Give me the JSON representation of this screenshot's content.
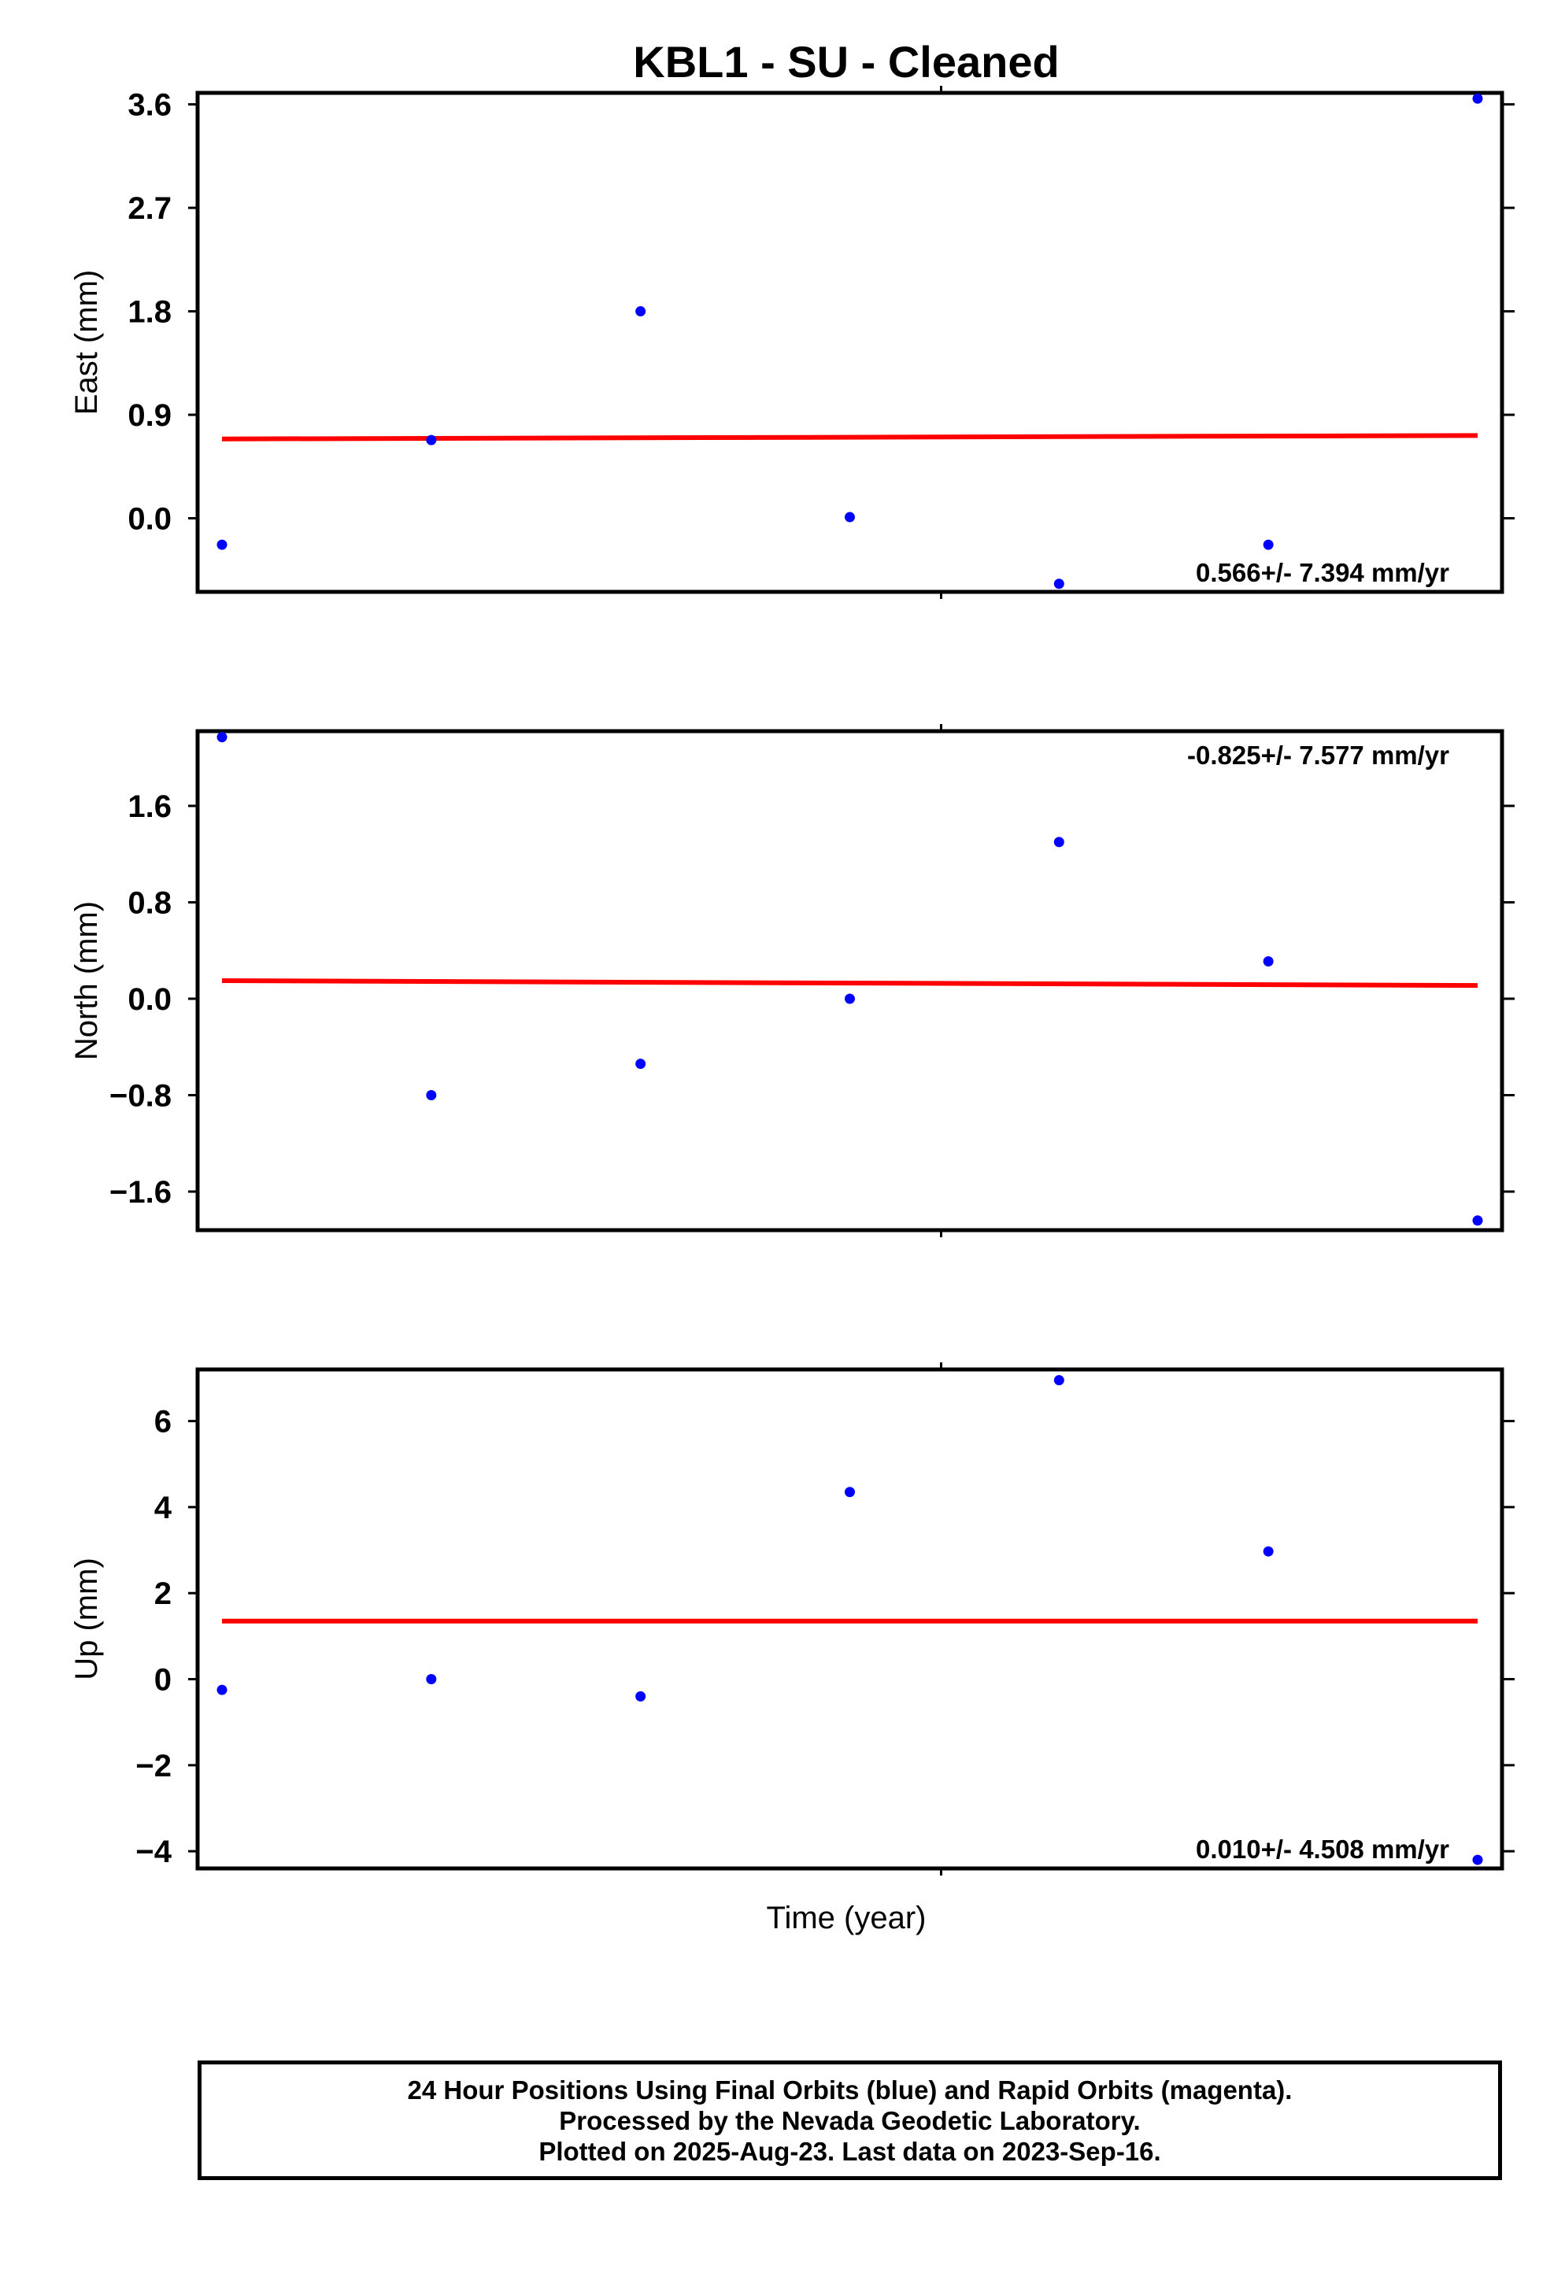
{
  "title": "KBL1  - SU - Cleaned",
  "xlabel": "Time (year)",
  "colors": {
    "points": "#0000ff",
    "trend": "#ff0000",
    "frame": "#000000"
  },
  "chart_data": [
    {
      "type": "scatter",
      "ylabel": "East (mm)",
      "yticks": [
        "3.6",
        "2.7",
        "1.8",
        "0.9",
        "0.0"
      ],
      "ylim": [
        -0.64,
        3.7
      ],
      "x": [
        0,
        1,
        2,
        3,
        4,
        5,
        6
      ],
      "y": [
        -0.23,
        0.68,
        1.8,
        0.01,
        -0.57,
        -0.23,
        3.65
      ],
      "trend": [
        0.69,
        0.72
      ],
      "rate": "0.566+/- 7.394 mm/yr",
      "rate_position": "bottom-right"
    },
    {
      "type": "scatter",
      "ylabel": "North (mm)",
      "yticks": [
        "1.6",
        "0.8",
        "0.0",
        "−0.8",
        "−1.6"
      ],
      "ylim": [
        -1.92,
        2.22
      ],
      "x": [
        0,
        1,
        2,
        3,
        4,
        5,
        6
      ],
      "y": [
        2.17,
        -0.8,
        -0.54,
        0.0,
        1.3,
        0.31,
        -1.84
      ],
      "trend": [
        0.15,
        0.11
      ],
      "rate": "-0.825+/- 7.577 mm/yr",
      "rate_position": "top-right"
    },
    {
      "type": "scatter",
      "ylabel": "Up (mm)",
      "yticks": [
        "6",
        "4",
        "2",
        "0",
        "−2",
        "−4"
      ],
      "ylim": [
        -4.4,
        7.2
      ],
      "x": [
        0,
        1,
        2,
        3,
        4,
        5,
        6
      ],
      "y": [
        -0.25,
        0.0,
        -0.4,
        4.35,
        6.95,
        2.97,
        -4.2
      ],
      "trend": [
        1.35,
        1.35
      ],
      "rate": "0.010+/- 4.508 mm/yr",
      "rate_position": "bottom-right"
    }
  ],
  "footer": {
    "line1": "24 Hour Positions Using Final Orbits (blue) and Rapid Orbits (magenta).",
    "line2": "Processed by the Nevada Geodetic Laboratory.",
    "line3": "Plotted on 2025-Aug-23. Last data on 2023-Sep-16."
  }
}
